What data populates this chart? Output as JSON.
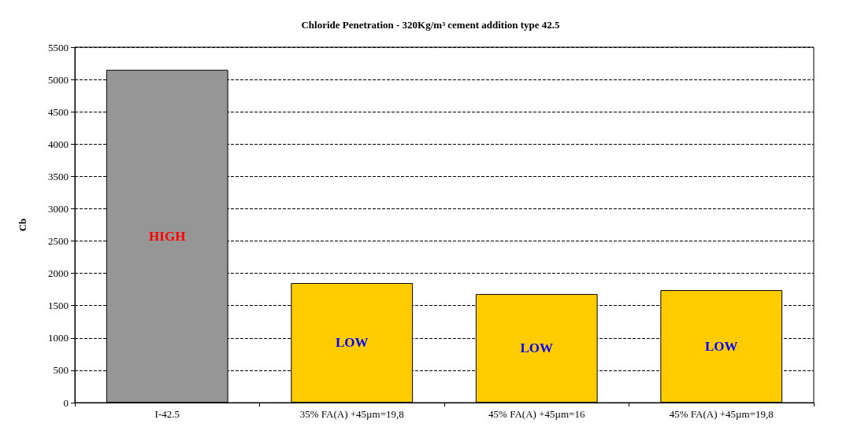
{
  "chart_data": {
    "type": "bar",
    "title": "Chloride Penetration - 320Kg/m³ cement addition type 42.5",
    "ylabel": "Cb",
    "categories": [
      "I-42.5",
      "35% FA(A) +45µm=19,8",
      "45% FA(A) +45µm=16",
      "45% FA(A) +45µm=19,8"
    ],
    "values": [
      5150,
      1850,
      1680,
      1740
    ],
    "colors": [
      "#969696",
      "#ffcc00",
      "#ffcc00",
      "#ffcc00"
    ],
    "ylim": [
      0,
      5500
    ],
    "yticks": [
      0,
      500,
      1000,
      1500,
      2000,
      2500,
      3000,
      3500,
      4000,
      4500,
      5000,
      5500
    ],
    "grid": "y",
    "line_style": "dashed",
    "annotations": [
      "HIGH",
      "LOW",
      "LOW",
      "LOW"
    ]
  }
}
